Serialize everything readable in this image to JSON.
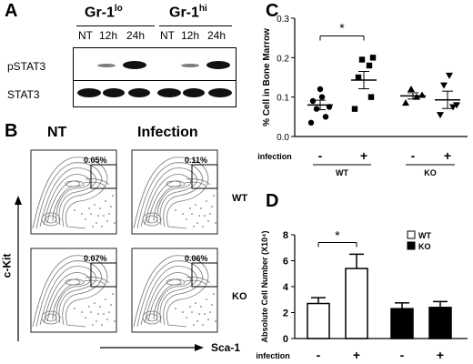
{
  "panelA": {
    "letter": "A",
    "groups": [
      {
        "name": "Gr-1",
        "sup": "lo"
      },
      {
        "name": "Gr-1",
        "sup": "hi"
      }
    ],
    "lanes": [
      "NT",
      "12h",
      "24h",
      "NT",
      "12h",
      "24h"
    ],
    "rows": [
      "pSTAT3",
      "STAT3"
    ]
  },
  "panelB": {
    "letter": "B",
    "col_nt": "NT",
    "col_inf": "Infection",
    "row_wt": "WT",
    "row_ko": "KO",
    "y_axis": "c-Kit",
    "x_axis": "Sca-1",
    "pcts": {
      "wt_nt": "0.05%",
      "wt_inf": "0.11%",
      "ko_nt": "0.07%",
      "ko_inf": "0.06%"
    }
  },
  "panelC": {
    "letter": "C",
    "sig": "*",
    "infection_label": "infection",
    "signs": [
      "-",
      "+",
      "-",
      "+"
    ],
    "geno": [
      "WT",
      "KO"
    ]
  },
  "panelD": {
    "letter": "D",
    "sig": "*",
    "infection_label": "infection",
    "signs": [
      "-",
      "+",
      "-",
      "+"
    ],
    "legend": [
      "WT",
      "KO"
    ]
  },
  "chart_data": [
    {
      "type": "scatter",
      "ylabel": "% Cell in Bone Marrow",
      "ylim": [
        0,
        0.3
      ],
      "yticks": [
        "0.0",
        "0.1",
        "0.2",
        "0.3"
      ],
      "groups": [
        {
          "name": "WT -",
          "marker": "circle",
          "points": [
            0.035,
            0.05,
            0.07,
            0.075,
            0.09,
            0.1,
            0.12
          ],
          "mean": 0.08,
          "sem": 0.012
        },
        {
          "name": "WT +",
          "marker": "square",
          "points": [
            0.07,
            0.1,
            0.15,
            0.18,
            0.195,
            0.2
          ],
          "mean": 0.143,
          "sem": 0.022
        },
        {
          "name": "KO -",
          "marker": "triangle-up",
          "points": [
            0.085,
            0.1,
            0.105,
            0.12
          ],
          "mean": 0.103,
          "sem": 0.008
        },
        {
          "name": "KO +",
          "marker": "triangle-down",
          "points": [
            0.055,
            0.075,
            0.08,
            0.13,
            0.155
          ],
          "mean": 0.093,
          "sem": 0.022
        }
      ]
    },
    {
      "type": "bar",
      "ylabel": "Absolute Cell Number (X10⁴)",
      "ylim": [
        0,
        8
      ],
      "yticks": [
        "0",
        "2",
        "4",
        "6",
        "8"
      ],
      "categories": [
        "WT -",
        "WT +",
        "KO -",
        "KO +"
      ],
      "values": [
        2.7,
        5.4,
        2.3,
        2.4
      ],
      "errors": [
        0.45,
        1.1,
        0.45,
        0.45
      ],
      "fills": [
        "#ffffff",
        "#ffffff",
        "#000000",
        "#000000"
      ]
    }
  ]
}
